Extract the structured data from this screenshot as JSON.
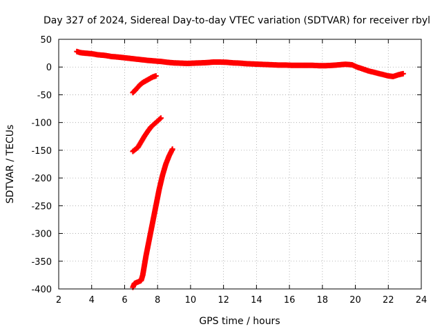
{
  "chart_data": {
    "type": "scatter",
    "title": "Day 327 of 2024, Sidereal Day-to-day VTEC variation (SDTVAR) for receiver rbyl",
    "xlabel": "GPS time / hours",
    "ylabel": "SDTVAR / TECUs",
    "xlim": [
      2,
      24
    ],
    "ylim": [
      -400,
      50
    ],
    "xticks": [
      2,
      4,
      6,
      8,
      10,
      12,
      14,
      16,
      18,
      20,
      22,
      24
    ],
    "yticks": [
      -400,
      -350,
      -300,
      -250,
      -200,
      -150,
      -100,
      -50,
      0,
      50
    ],
    "grid": true,
    "marker_color": "#ff0000",
    "series": [
      {
        "points": [
          [
            3.1,
            28
          ],
          [
            3.3,
            26
          ],
          [
            3.6,
            25
          ],
          [
            4.0,
            24
          ],
          [
            4.4,
            22
          ],
          [
            4.8,
            21
          ],
          [
            5.2,
            19
          ],
          [
            5.6,
            18
          ],
          [
            5.9,
            17
          ],
          [
            6.2,
            16
          ],
          [
            6.5,
            15
          ],
          [
            7.4,
            12
          ],
          [
            7.8,
            11
          ],
          [
            8.2,
            10
          ],
          [
            8.6,
            8.5
          ],
          [
            9.0,
            7.5
          ],
          [
            9.4,
            7
          ],
          [
            9.8,
            6.5
          ],
          [
            10.2,
            7
          ],
          [
            10.6,
            7.5
          ],
          [
            11.0,
            8
          ],
          [
            11.4,
            9
          ],
          [
            11.8,
            9
          ],
          [
            12.2,
            8.5
          ],
          [
            12.6,
            7.5
          ],
          [
            13.0,
            7
          ],
          [
            13.4,
            6
          ],
          [
            13.8,
            5.5
          ],
          [
            14.2,
            5
          ],
          [
            14.6,
            4.5
          ],
          [
            15.0,
            4
          ],
          [
            15.4,
            3.5
          ],
          [
            15.8,
            3.5
          ],
          [
            16.2,
            3
          ],
          [
            16.6,
            3
          ],
          [
            17.0,
            3
          ],
          [
            17.4,
            3
          ],
          [
            17.8,
            2.5
          ],
          [
            18.2,
            2.5
          ],
          [
            18.6,
            3
          ],
          [
            19.0,
            4
          ],
          [
            19.4,
            5
          ],
          [
            19.8,
            4
          ],
          [
            20.1,
            0
          ],
          [
            20.4,
            -3
          ],
          [
            20.8,
            -7
          ],
          [
            21.2,
            -10
          ],
          [
            21.6,
            -13
          ],
          [
            22.0,
            -16
          ],
          [
            22.3,
            -17
          ],
          [
            22.6,
            -14
          ],
          [
            22.9,
            -12
          ]
        ]
      },
      {
        "points": [
          [
            6.5,
            -46
          ],
          [
            6.7,
            -40
          ],
          [
            6.9,
            -33
          ],
          [
            7.1,
            -28
          ],
          [
            7.4,
            -23
          ],
          [
            7.7,
            -18
          ],
          [
            7.9,
            -16
          ]
        ]
      },
      {
        "points": [
          [
            6.5,
            -152
          ],
          [
            6.8,
            -145
          ],
          [
            7.0,
            -135
          ],
          [
            7.2,
            -125
          ],
          [
            7.4,
            -116
          ],
          [
            7.6,
            -108
          ],
          [
            7.9,
            -100
          ],
          [
            8.2,
            -92
          ]
        ]
      },
      {
        "points": [
          [
            6.5,
            -397
          ],
          [
            6.6,
            -390
          ],
          [
            7.0,
            -385
          ],
          [
            7.1,
            -375
          ],
          [
            7.3,
            -340
          ],
          [
            7.5,
            -310
          ],
          [
            7.7,
            -280
          ],
          [
            7.9,
            -250
          ],
          [
            8.1,
            -220
          ],
          [
            8.3,
            -195
          ],
          [
            8.5,
            -175
          ],
          [
            8.7,
            -160
          ],
          [
            8.9,
            -148
          ]
        ]
      }
    ]
  }
}
